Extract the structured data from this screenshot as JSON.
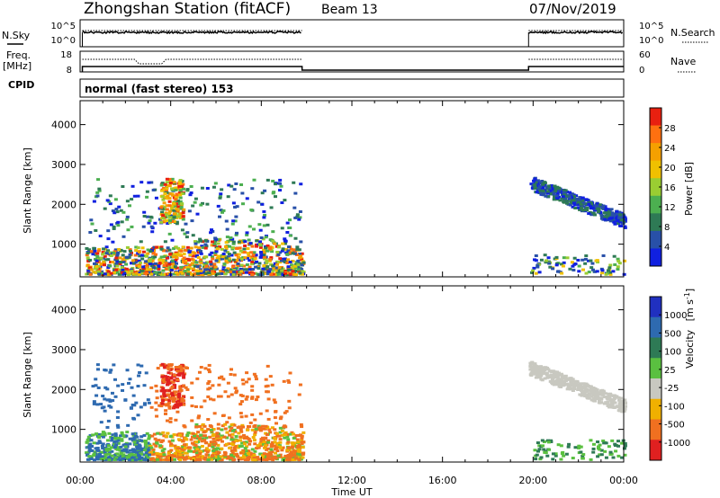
{
  "header": {
    "station": "Zhongshan Station (fitACF)",
    "beam": "Beam 13",
    "date": "07/Nov/2019"
  },
  "labels": {
    "nsky": "N.Sky",
    "nsearch": "N.Search",
    "freq": "Freq.",
    "freq_unit": "[MHz]",
    "nave": "Nave",
    "cpid": "CPID",
    "cpid_value": "normal (fast stereo) 153",
    "y_axis": "Slant Range [km]",
    "x_axis": "Time UT",
    "power_cbar": "Power [dB]",
    "velocity_cbar": "Velocity"
  },
  "noise_panel": {
    "left_ticks": [
      "10^5",
      "10^0"
    ],
    "right_ticks": [
      "10^5",
      "10^0"
    ]
  },
  "freq_panel": {
    "left_ticks": [
      "18",
      "8"
    ],
    "right_ticks": [
      "60",
      "0"
    ]
  },
  "colors": {
    "power": [
      "#1020e0",
      "#2850a8",
      "#2e7a55",
      "#4caf50",
      "#9acd32",
      "#f0c000",
      "#f5a000",
      "#ff7010",
      "#e82010"
    ],
    "velocity": [
      "#2030c0",
      "#2e6ab0",
      "#2e7a55",
      "#5ac040",
      "#c8c8c0",
      "#f0b000",
      "#f07020",
      "#e02020"
    ]
  },
  "chart_data": [
    {
      "type": "heatmap",
      "title": "Power",
      "xlabel": "Time UT",
      "ylabel": "Slant Range [km]",
      "x_ticks": [
        "00:00",
        "04:00",
        "08:00",
        "12:00",
        "16:00",
        "20:00",
        "00:00"
      ],
      "xlim_hours": [
        0,
        24
      ],
      "ylim_km": [
        180,
        4600
      ],
      "y_ticks": [
        1000,
        2000,
        3000,
        4000
      ],
      "colorbar": {
        "label": "Power [dB]",
        "ticks": [
          "4",
          "8",
          "12",
          "16",
          "20",
          "24",
          "28"
        ],
        "range": [
          0,
          30
        ]
      },
      "data_gaps_hours": [
        [
          9.8,
          19.8
        ]
      ],
      "regions": [
        {
          "t": [
            0.2,
            9.8
          ],
          "r": [
            200,
            1000
          ],
          "level": "mixed 4-28"
        },
        {
          "t": [
            3.5,
            4.5
          ],
          "r": [
            1500,
            2600
          ],
          "level": "8-28"
        },
        {
          "t": [
            19.8,
            24.0
          ],
          "r": [
            1500,
            2700
          ],
          "level": "4-12"
        }
      ]
    },
    {
      "type": "heatmap",
      "title": "Velocity",
      "xlabel": "Time UT",
      "ylabel": "Slant Range [km]",
      "x_ticks": [
        "00:00",
        "04:00",
        "08:00",
        "12:00",
        "16:00",
        "20:00",
        "00:00"
      ],
      "xlim_hours": [
        0,
        24
      ],
      "ylim_km": [
        180,
        4600
      ],
      "y_ticks": [
        1000,
        2000,
        3000,
        4000
      ],
      "colorbar": {
        "label": "Velocity [m s^-1]",
        "ticks": [
          "1000",
          "500",
          "100",
          "25",
          "-25",
          "-100",
          "-500",
          "-1000"
        ]
      },
      "data_gaps_hours": [
        [
          9.8,
          19.8
        ]
      ],
      "regions": [
        {
          "t": [
            0.2,
            3.0
          ],
          "r": [
            200,
            1000
          ],
          "level": "-100 to 500"
        },
        {
          "t": [
            3.5,
            9.8
          ],
          "r": [
            200,
            1200
          ],
          "level": "-500 to -100"
        },
        {
          "t": [
            19.8,
            24.0
          ],
          "r": [
            1500,
            2700
          ],
          "level": "-25 to 25"
        }
      ]
    }
  ]
}
